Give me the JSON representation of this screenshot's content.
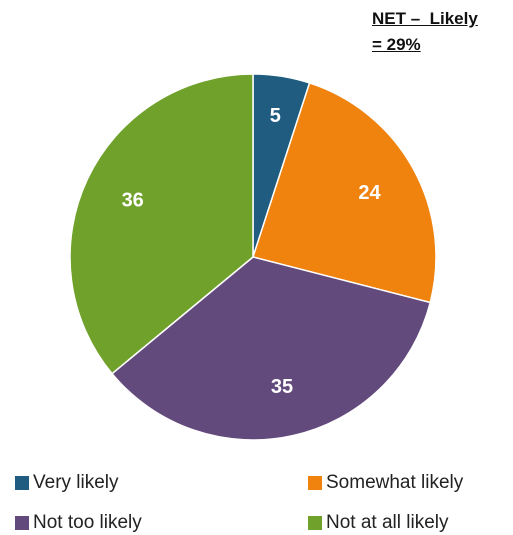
{
  "note": {
    "line1": "NET –  Likely",
    "line2": "= 29%"
  },
  "chart_data": {
    "type": "pie",
    "title": "",
    "start_angle_deg": 0,
    "direction": "clockwise",
    "slices": [
      {
        "label": "Very likely",
        "value": 5,
        "display": "5",
        "color": "#1F5C7F"
      },
      {
        "label": "Somewhat likely",
        "value": 24,
        "display": "24",
        "color": "#F0820E"
      },
      {
        "label": "Not too likely",
        "value": 35,
        "display": "35",
        "color": "#634A7C"
      },
      {
        "label": "Not at all likely",
        "value": 36,
        "display": "36",
        "color": "#6FA12B"
      }
    ],
    "legend_position": "bottom"
  },
  "legend": {
    "very_likely": "Very likely",
    "somewhat_likely": "Somewhat likely",
    "not_too_likely": "Not too likely",
    "not_at_all_likely": "Not at all likely"
  }
}
